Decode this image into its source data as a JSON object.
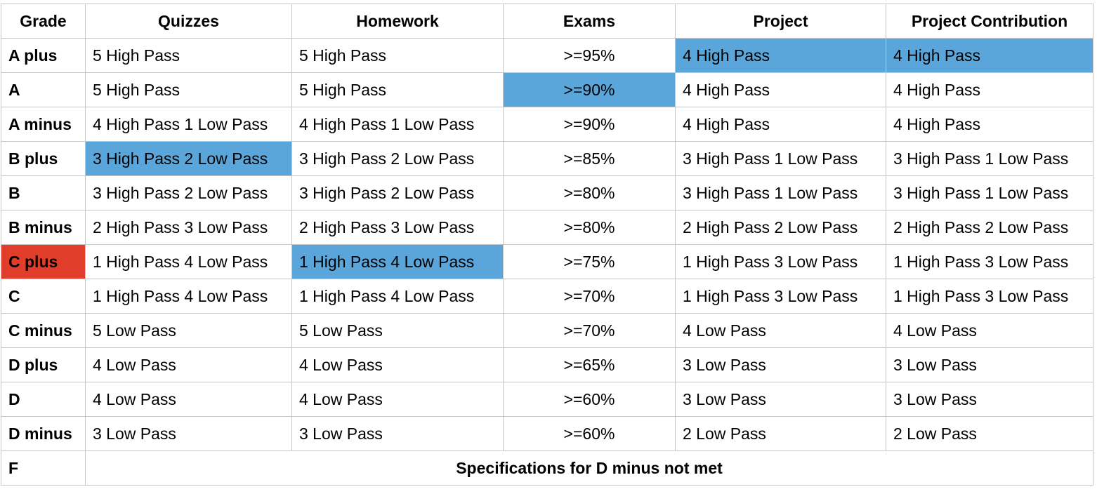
{
  "table": {
    "headers": [
      "Grade",
      "Quizzes",
      "Homework",
      "Exams",
      "Project",
      "Project Contribution"
    ],
    "rows": [
      [
        "A plus",
        "5 High Pass",
        "5 High Pass",
        ">=95%",
        "4 High Pass",
        "4 High Pass"
      ],
      [
        "A",
        "5 High Pass",
        "5 High Pass",
        ">=90%",
        "4 High Pass",
        "4 High Pass"
      ],
      [
        "A minus",
        "4 High Pass 1 Low Pass",
        "4 High Pass 1 Low Pass",
        ">=90%",
        "4 High Pass",
        "4 High Pass"
      ],
      [
        "B plus",
        "3 High Pass 2 Low Pass",
        "3 High Pass 2 Low Pass",
        ">=85%",
        "3 High Pass 1 Low Pass",
        "3 High Pass 1 Low Pass"
      ],
      [
        "B",
        "3 High Pass 2 Low Pass",
        "3 High Pass 2 Low Pass",
        ">=80%",
        "3 High Pass 1 Low Pass",
        "3 High Pass 1 Low Pass"
      ],
      [
        "B minus",
        "2 High Pass 3 Low Pass",
        "2 High Pass 3 Low Pass",
        ">=80%",
        "2 High Pass 2 Low Pass",
        "2 High Pass 2 Low Pass"
      ],
      [
        "C plus",
        "1 High Pass 4 Low Pass",
        "1 High Pass 4 Low Pass",
        ">=75%",
        "1 High Pass 3 Low Pass",
        "1 High Pass 3 Low Pass"
      ],
      [
        "C",
        "1 High Pass 4 Low Pass",
        "1 High Pass 4 Low Pass",
        ">=70%",
        "1 High Pass 3 Low Pass",
        "1 High Pass 3 Low Pass"
      ],
      [
        "C minus",
        "5 Low Pass",
        "5 Low Pass",
        ">=70%",
        "4 Low Pass",
        "4 Low Pass"
      ],
      [
        "D plus",
        "4 Low Pass",
        "4 Low Pass",
        ">=65%",
        "3 Low Pass",
        "3 Low Pass"
      ],
      [
        "D",
        "4 Low Pass",
        "4 Low Pass",
        ">=60%",
        "3 Low Pass",
        "3 Low Pass"
      ],
      [
        "D minus",
        "3 Low Pass",
        "3 Low Pass",
        ">=60%",
        "2 Low Pass",
        "2 Low Pass"
      ]
    ],
    "fail_row": {
      "grade": "F",
      "spec": "Specifications for D minus not met"
    },
    "highlight_colors": {
      "blue": "#5aa5d9",
      "red": "#e03d2b"
    }
  }
}
